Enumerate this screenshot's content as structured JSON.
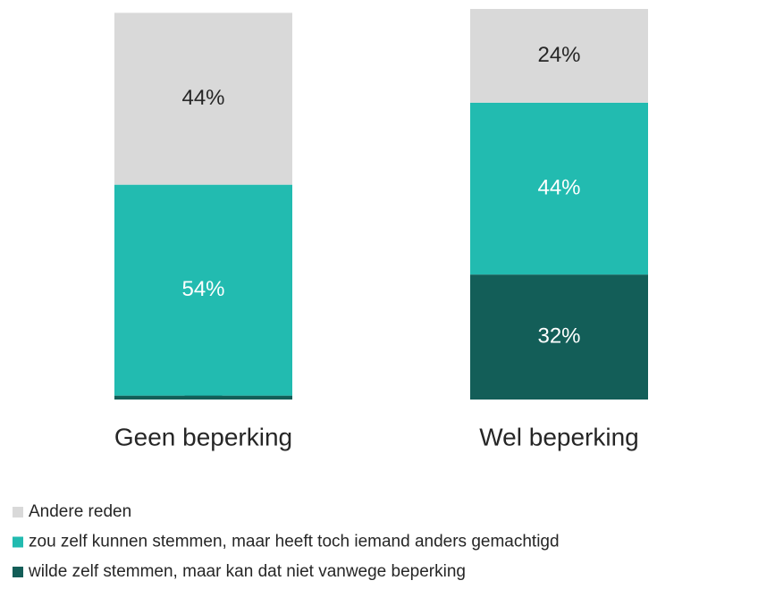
{
  "chart_data": {
    "type": "stacked_bar",
    "categories": [
      "Geen beperking",
      "Wel beperking"
    ],
    "series": [
      {
        "name": "wilde zelf stemmen, maar kan dat niet vanwege beperking",
        "color": "#135e58",
        "values": [
          1,
          32
        ],
        "value_labels": [
          "1%",
          "32%"
        ]
      },
      {
        "name": "zou zelf kunnen stemmen, maar heeft toch iemand anders gemachtigd",
        "color": "#22bbb0",
        "values": [
          54,
          44
        ],
        "value_labels": [
          "54%",
          "44%"
        ]
      },
      {
        "name": "Andere reden",
        "color": "#d9d9d9",
        "values": [
          44,
          24
        ],
        "value_labels": [
          "44%",
          "24%"
        ]
      }
    ]
  }
}
